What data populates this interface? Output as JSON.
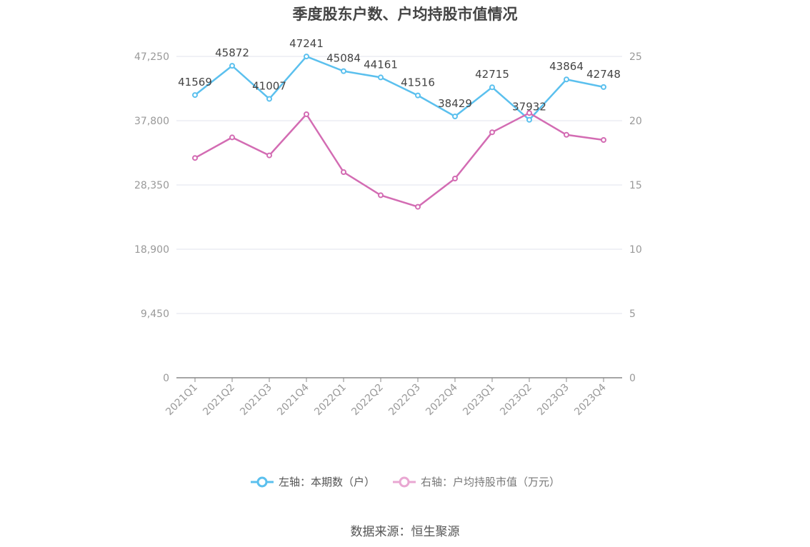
{
  "chart_data": {
    "type": "line",
    "title": "季度股东户数、户均持股市值情况",
    "categories": [
      "2021Q1",
      "2021Q2",
      "2021Q3",
      "2021Q4",
      "2022Q1",
      "2022Q2",
      "2022Q3",
      "2022Q4",
      "2023Q1",
      "2023Q2",
      "2023Q3",
      "2023Q4"
    ],
    "left_axis": {
      "ylim": [
        0,
        47250
      ],
      "ticks": [
        "0",
        "9,450",
        "18,900",
        "28,350",
        "37,800",
        "47,250"
      ]
    },
    "right_axis": {
      "ylim": [
        0,
        25
      ],
      "ticks": [
        "0",
        "5",
        "10",
        "15",
        "20",
        "25"
      ]
    },
    "series": [
      {
        "name": "左轴：本期数（户）",
        "axis": "left",
        "color": "#5bc0ee",
        "values": [
          41569,
          45872,
          41007,
          47241,
          45084,
          44161,
          41516,
          38429,
          42715,
          37932,
          43864,
          42748
        ],
        "labels": [
          "41569",
          "45872",
          "41007",
          "47241",
          "45084",
          "44161",
          "41516",
          "38429",
          "42715",
          "37932",
          "43864",
          "42748"
        ]
      },
      {
        "name": "右轴：户均持股市值（万元）",
        "axis": "right",
        "color": "#d36cb3",
        "values": [
          17.1,
          18.7,
          17.3,
          20.5,
          16.0,
          14.2,
          13.3,
          15.5,
          19.1,
          20.6,
          18.9,
          18.5
        ]
      }
    ],
    "grid": true,
    "legend_position": "bottom"
  },
  "source": "数据来源：恒生聚源"
}
